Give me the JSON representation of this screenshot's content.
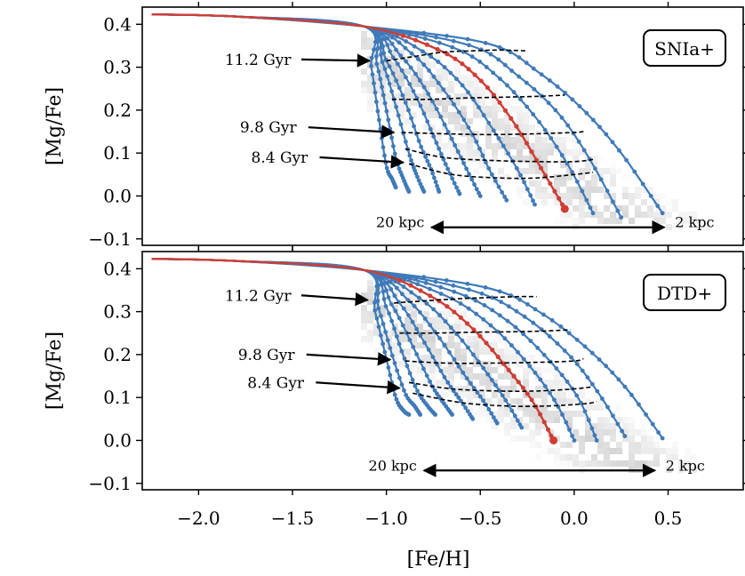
{
  "figure": {
    "xlabel": "[Fe/H]",
    "x_ticks": [
      "−2.0",
      "−1.5",
      "−1.0",
      "−0.5",
      "0.0",
      "0.5"
    ]
  },
  "chart_data": [
    {
      "type": "line",
      "panel": "top",
      "title": "SNIa+",
      "xlabel": "[Fe/H]",
      "ylabel": "[Mg/Fe]",
      "xlim": [
        -2.3,
        0.9
      ],
      "ylim": [
        -0.115,
        0.44
      ],
      "x_ticks": [
        -2.0,
        -1.5,
        -1.0,
        -0.5,
        0.0,
        0.5
      ],
      "y_ticks": [
        -0.1,
        0.0,
        0.1,
        0.2,
        0.3,
        0.4
      ],
      "y_tick_labels": [
        "−0.1",
        "0.0",
        "0.1",
        "0.2",
        "0.3",
        "0.4"
      ],
      "grid": false,
      "legend": "none",
      "colors": {
        "tracks": "#3f7ab8",
        "highlight": "#d13d33",
        "isochrone": "#000000",
        "density": "#c8c8c8"
      },
      "tracks": [
        {
          "x": [
            -2.25,
            -1.8,
            -1.12,
            -1.08,
            -1.04,
            -1.0,
            -0.97,
            -0.95
          ],
          "y": [
            0.423,
            0.418,
            0.395,
            0.3,
            0.18,
            0.07,
            0.04,
            0.02
          ]
        },
        {
          "x": [
            -2.25,
            -1.8,
            -1.12,
            -1.05,
            -1.0,
            -0.95,
            -0.91,
            -0.88
          ],
          "y": [
            0.423,
            0.418,
            0.395,
            0.305,
            0.2,
            0.09,
            0.04,
            0.01
          ]
        },
        {
          "x": [
            -2.25,
            -1.8,
            -1.12,
            -1.02,
            -0.95,
            -0.88,
            -0.84,
            -0.8
          ],
          "y": [
            0.423,
            0.418,
            0.395,
            0.31,
            0.21,
            0.1,
            0.05,
            0.01
          ]
        },
        {
          "x": [
            -2.25,
            -1.8,
            -1.12,
            -1.0,
            -0.9,
            -0.82,
            -0.76,
            -0.72
          ],
          "y": [
            0.423,
            0.418,
            0.395,
            0.315,
            0.22,
            0.12,
            0.06,
            0.01
          ]
        },
        {
          "x": [
            -2.25,
            -1.8,
            -1.12,
            -0.96,
            -0.84,
            -0.74,
            -0.67,
            -0.61
          ],
          "y": [
            0.423,
            0.418,
            0.395,
            0.32,
            0.23,
            0.13,
            0.06,
            0.005
          ]
        },
        {
          "x": [
            -2.25,
            -1.8,
            -1.12,
            -0.92,
            -0.78,
            -0.66,
            -0.57,
            -0.5
          ],
          "y": [
            0.423,
            0.418,
            0.395,
            0.325,
            0.24,
            0.14,
            0.06,
            0.0
          ]
        },
        {
          "x": [
            -2.25,
            -1.8,
            -1.12,
            -0.86,
            -0.7,
            -0.55,
            -0.45,
            -0.36
          ],
          "y": [
            0.423,
            0.418,
            0.395,
            0.33,
            0.25,
            0.15,
            0.06,
            -0.01
          ]
        },
        {
          "x": [
            -2.25,
            -1.8,
            -1.12,
            -0.8,
            -0.6,
            -0.44,
            -0.3,
            -0.21
          ],
          "y": [
            0.423,
            0.418,
            0.395,
            0.335,
            0.26,
            0.16,
            0.06,
            -0.02
          ]
        },
        {
          "x": [
            -2.25,
            -1.8,
            -1.12,
            -0.72,
            -0.5,
            -0.32,
            -0.17,
            -0.05
          ],
          "y": [
            0.423,
            0.418,
            0.395,
            0.34,
            0.27,
            0.17,
            0.06,
            -0.03
          ]
        },
        {
          "x": [
            -2.25,
            -1.8,
            -1.12,
            -0.64,
            -0.4,
            -0.2,
            -0.03,
            0.1
          ],
          "y": [
            0.423,
            0.418,
            0.395,
            0.345,
            0.275,
            0.18,
            0.07,
            -0.04
          ]
        },
        {
          "x": [
            -2.25,
            -1.8,
            -1.12,
            -0.55,
            -0.3,
            -0.08,
            0.09,
            0.25
          ],
          "y": [
            0.423,
            0.418,
            0.395,
            0.35,
            0.28,
            0.19,
            0.08,
            -0.05
          ]
        },
        {
          "x": [
            -2.25,
            -1.8,
            -1.12,
            -0.46,
            -0.18,
            0.05,
            0.25,
            0.47
          ],
          "y": [
            0.423,
            0.418,
            0.395,
            0.355,
            0.285,
            0.2,
            0.1,
            -0.04
          ]
        }
      ],
      "highlight_track": {
        "x": [
          -2.25,
          -1.8,
          -1.12,
          -0.72,
          -0.5,
          -0.32,
          -0.17,
          -0.05
        ],
        "y": [
          0.423,
          0.418,
          0.395,
          0.34,
          0.27,
          0.17,
          0.06,
          -0.03
        ]
      },
      "isochrones": [
        {
          "x": [
            -1.0,
            -0.85,
            -0.7,
            -0.55,
            -0.4,
            -0.25
          ],
          "y": [
            0.315,
            0.325,
            0.335,
            0.338,
            0.34,
            0.338
          ]
        },
        {
          "x": [
            -0.97,
            -0.78,
            -0.6,
            -0.4,
            -0.2,
            -0.05
          ],
          "y": [
            0.225,
            0.225,
            0.228,
            0.23,
            0.232,
            0.235
          ]
        },
        {
          "x": [
            -0.92,
            -0.7,
            -0.45,
            -0.2,
            0.0,
            0.05
          ],
          "y": [
            0.148,
            0.145,
            0.143,
            0.145,
            0.148,
            0.15
          ]
        },
        {
          "x": [
            -0.9,
            -0.7,
            -0.45,
            -0.2,
            0.0,
            0.1
          ],
          "y": [
            0.11,
            0.09,
            0.083,
            0.08,
            0.08,
            0.085
          ]
        },
        {
          "x": [
            -0.88,
            -0.65,
            -0.4,
            -0.2,
            0.0,
            0.1
          ],
          "y": [
            0.075,
            0.05,
            0.042,
            0.042,
            0.05,
            0.055
          ]
        }
      ],
      "annotations": [
        {
          "text": "11.2 Gyr",
          "x": -1.86,
          "y": 0.318,
          "arrow_x": -1.09,
          "arrow_y": 0.315
        },
        {
          "text": "9.8 Gyr",
          "x": -1.78,
          "y": 0.16,
          "arrow_x": -0.96,
          "arrow_y": 0.148
        },
        {
          "text": "8.4 Gyr",
          "x": -1.72,
          "y": 0.09,
          "arrow_x": -0.91,
          "arrow_y": 0.078
        }
      ],
      "range_arrow": {
        "left_label": "20 kpc",
        "right_label": "2 kpc",
        "x_left": -0.76,
        "x_right": 0.48,
        "y": -0.073
      }
    },
    {
      "type": "line",
      "panel": "bottom",
      "title": "DTD+",
      "xlabel": "[Fe/H]",
      "ylabel": "[Mg/Fe]",
      "xlim": [
        -2.3,
        0.9
      ],
      "ylim": [
        -0.115,
        0.44
      ],
      "x_ticks": [
        -2.0,
        -1.5,
        -1.0,
        -0.5,
        0.0,
        0.5
      ],
      "y_ticks": [
        -0.1,
        0.0,
        0.1,
        0.2,
        0.3,
        0.4
      ],
      "y_tick_labels": [
        "−0.1",
        "0.0",
        "0.1",
        "0.2",
        "0.3",
        "0.4"
      ],
      "grid": false,
      "legend": "none",
      "colors": {
        "tracks": "#3f7ab8",
        "highlight": "#d13d33",
        "isochrone": "#000000",
        "density": "#c8c8c8"
      },
      "tracks": [
        {
          "x": [
            -2.25,
            -1.8,
            -1.12,
            -1.06,
            -1.0,
            -0.95,
            -0.91,
            -0.88
          ],
          "y": [
            0.423,
            0.418,
            0.397,
            0.3,
            0.19,
            0.1,
            0.07,
            0.06
          ]
        },
        {
          "x": [
            -2.25,
            -1.8,
            -1.12,
            -1.04,
            -0.97,
            -0.9,
            -0.85,
            -0.82
          ],
          "y": [
            0.423,
            0.418,
            0.397,
            0.305,
            0.2,
            0.11,
            0.08,
            0.06
          ]
        },
        {
          "x": [
            -2.25,
            -1.8,
            -1.12,
            -1.0,
            -0.92,
            -0.84,
            -0.78,
            -0.74
          ],
          "y": [
            0.423,
            0.418,
            0.397,
            0.31,
            0.21,
            0.12,
            0.08,
            0.06
          ]
        },
        {
          "x": [
            -2.25,
            -1.8,
            -1.12,
            -0.97,
            -0.86,
            -0.76,
            -0.7,
            -0.65
          ],
          "y": [
            0.423,
            0.418,
            0.397,
            0.315,
            0.22,
            0.13,
            0.09,
            0.06
          ]
        },
        {
          "x": [
            -2.25,
            -1.8,
            -1.12,
            -0.93,
            -0.8,
            -0.68,
            -0.6,
            -0.54
          ],
          "y": [
            0.423,
            0.418,
            0.397,
            0.32,
            0.23,
            0.14,
            0.09,
            0.05
          ]
        },
        {
          "x": [
            -2.25,
            -1.8,
            -1.12,
            -0.88,
            -0.72,
            -0.58,
            -0.48,
            -0.41
          ],
          "y": [
            0.423,
            0.418,
            0.397,
            0.325,
            0.24,
            0.15,
            0.09,
            0.04
          ]
        },
        {
          "x": [
            -2.25,
            -1.8,
            -1.12,
            -0.82,
            -0.63,
            -0.47,
            -0.36,
            -0.28
          ],
          "y": [
            0.423,
            0.418,
            0.397,
            0.33,
            0.25,
            0.16,
            0.09,
            0.03
          ]
        },
        {
          "x": [
            -2.25,
            -1.8,
            -1.12,
            -0.76,
            -0.54,
            -0.36,
            -0.22,
            -0.11
          ],
          "y": [
            0.423,
            0.418,
            0.397,
            0.335,
            0.26,
            0.17,
            0.09,
            0.0
          ]
        },
        {
          "x": [
            -2.25,
            -1.8,
            -1.12,
            -0.7,
            -0.45,
            -0.25,
            -0.1,
            0.0
          ],
          "y": [
            0.423,
            0.418,
            0.397,
            0.34,
            0.27,
            0.18,
            0.09,
            0.0
          ]
        },
        {
          "x": [
            -2.25,
            -1.8,
            -1.12,
            -0.63,
            -0.36,
            -0.14,
            0.02,
            0.12
          ],
          "y": [
            0.423,
            0.418,
            0.397,
            0.345,
            0.28,
            0.19,
            0.1,
            0.0
          ]
        },
        {
          "x": [
            -2.25,
            -1.8,
            -1.12,
            -0.55,
            -0.27,
            -0.03,
            0.13,
            0.27
          ],
          "y": [
            0.423,
            0.418,
            0.397,
            0.35,
            0.29,
            0.2,
            0.11,
            0.01
          ]
        },
        {
          "x": [
            -2.25,
            -1.8,
            -1.12,
            -0.46,
            -0.17,
            0.08,
            0.28,
            0.47
          ],
          "y": [
            0.423,
            0.418,
            0.397,
            0.355,
            0.295,
            0.21,
            0.12,
            0.005
          ]
        }
      ],
      "highlight_track": {
        "x": [
          -2.25,
          -1.8,
          -1.12,
          -0.76,
          -0.54,
          -0.36,
          -0.22,
          -0.11
        ],
        "y": [
          0.423,
          0.418,
          0.397,
          0.335,
          0.26,
          0.17,
          0.09,
          0.0
        ]
      },
      "isochrones": [
        {
          "x": [
            -0.96,
            -0.8,
            -0.62,
            -0.45,
            -0.3,
            -0.2
          ],
          "y": [
            0.32,
            0.325,
            0.33,
            0.333,
            0.335,
            0.335
          ]
        },
        {
          "x": [
            -0.93,
            -0.75,
            -0.55,
            -0.35,
            -0.15,
            -0.02
          ],
          "y": [
            0.25,
            0.25,
            0.252,
            0.253,
            0.255,
            0.258
          ]
        },
        {
          "x": [
            -0.9,
            -0.68,
            -0.45,
            -0.2,
            0.0,
            0.05
          ],
          "y": [
            0.185,
            0.18,
            0.18,
            0.182,
            0.185,
            0.19
          ]
        },
        {
          "x": [
            -0.88,
            -0.65,
            -0.4,
            -0.2,
            0.0,
            0.1
          ],
          "y": [
            0.135,
            0.12,
            0.115,
            0.115,
            0.12,
            0.125
          ]
        },
        {
          "x": [
            -0.86,
            -0.6,
            -0.35,
            -0.15,
            0.05,
            0.12
          ],
          "y": [
            0.11,
            0.088,
            0.08,
            0.08,
            0.085,
            0.09
          ]
        }
      ],
      "annotations": [
        {
          "text": "11.2 Gyr",
          "x": -1.86,
          "y": 0.338,
          "arrow_x": -1.1,
          "arrow_y": 0.327
        },
        {
          "text": "9.8 Gyr",
          "x": -1.79,
          "y": 0.2,
          "arrow_x": -0.98,
          "arrow_y": 0.188
        },
        {
          "text": "8.4 Gyr",
          "x": -1.74,
          "y": 0.135,
          "arrow_x": -0.93,
          "arrow_y": 0.122
        }
      ],
      "range_arrow": {
        "left_label": "20 kpc",
        "right_label": "2 kpc",
        "x_left": -0.8,
        "x_right": 0.43,
        "y": -0.07
      }
    }
  ]
}
